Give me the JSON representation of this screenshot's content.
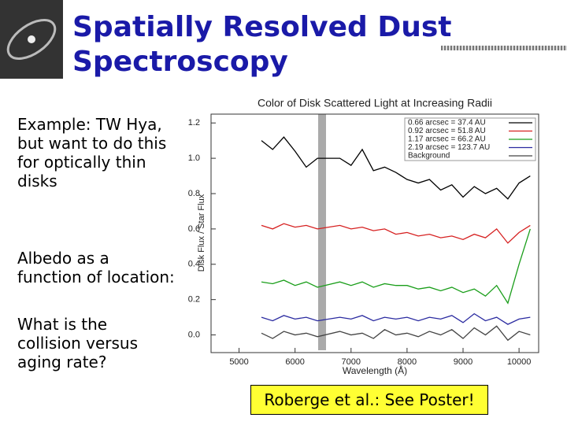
{
  "slide": {
    "title_lines": [
      "Spatially Resolved Dust",
      "Spectroscopy"
    ],
    "paragraphs": [
      [
        "Example: TW Hya,",
        "but want to do this",
        "for optically thin",
        "disks"
      ],
      [
        "Albedo as a",
        "function of location:"
      ],
      [
        "What is the",
        "collision versus",
        "aging rate?"
      ]
    ],
    "callout": "Roberge et al.: See Poster!"
  },
  "chart_data": {
    "type": "line",
    "title": "Color of Disk Scattered Light at Increasing Radii",
    "x_label": "Wavelength (Å)",
    "y_label": "Disk Flux / Star Flux",
    "xlim": [
      4500,
      10350
    ],
    "ylim": [
      -0.1,
      1.25
    ],
    "xticks": [
      5000,
      6000,
      7000,
      8000,
      9000,
      10000
    ],
    "yticks": [
      {
        "value": 0,
        "label": "0.0"
      },
      0.2,
      0.4,
      0.6,
      0.8,
      {
        "value": 1,
        "label": "1.0"
      },
      1.2
    ],
    "x": [
      5400,
      5600,
      5800,
      6000,
      6200,
      6400,
      6800,
      7000,
      7200,
      7400,
      7600,
      7800,
      8000,
      8200,
      8400,
      8600,
      8800,
      9000,
      9200,
      9400,
      9600,
      9800,
      10000,
      10200
    ],
    "series": [
      {
        "name": "0.66 arcsec = 37.4 AU",
        "color": "#000000",
        "values": [
          1.1,
          1.05,
          1.12,
          1.04,
          0.95,
          1.0,
          1.0,
          0.96,
          1.05,
          0.93,
          0.95,
          0.92,
          0.88,
          0.86,
          0.88,
          0.82,
          0.85,
          0.78,
          0.84,
          0.8,
          0.83,
          0.77,
          0.86,
          0.9
        ]
      },
      {
        "name": "0.92 arcsec = 51.8 AU",
        "color": "#d62020",
        "values": [
          0.62,
          0.6,
          0.63,
          0.61,
          0.62,
          0.6,
          0.62,
          0.6,
          0.61,
          0.59,
          0.6,
          0.57,
          0.58,
          0.56,
          0.57,
          0.55,
          0.56,
          0.54,
          0.57,
          0.55,
          0.6,
          0.52,
          0.58,
          0.62
        ]
      },
      {
        "name": "1.17 arcsec = 66.2 AU",
        "color": "#1a9e1a",
        "values": [
          0.3,
          0.29,
          0.31,
          0.28,
          0.3,
          0.27,
          0.3,
          0.28,
          0.3,
          0.27,
          0.29,
          0.28,
          0.28,
          0.26,
          0.27,
          0.25,
          0.27,
          0.24,
          0.26,
          0.22,
          0.28,
          0.18,
          0.4,
          0.6
        ]
      },
      {
        "name": "2.19 arcsec = 123.7 AU",
        "color": "#2a2aa0",
        "values": [
          0.1,
          0.08,
          0.11,
          0.09,
          0.1,
          0.08,
          0.1,
          0.09,
          0.11,
          0.08,
          0.1,
          0.09,
          0.1,
          0.08,
          0.1,
          0.09,
          0.11,
          0.07,
          0.12,
          0.08,
          0.1,
          0.06,
          0.09,
          0.1
        ]
      },
      {
        "name": "Background",
        "color": "#444444",
        "values": [
          0.01,
          -0.02,
          0.02,
          0.0,
          0.01,
          -0.01,
          0.02,
          0.0,
          0.01,
          -0.02,
          0.03,
          0.0,
          0.01,
          -0.01,
          0.02,
          0.0,
          0.03,
          -0.02,
          0.04,
          0.0,
          0.05,
          -0.03,
          0.02,
          0.0
        ]
      }
    ]
  }
}
